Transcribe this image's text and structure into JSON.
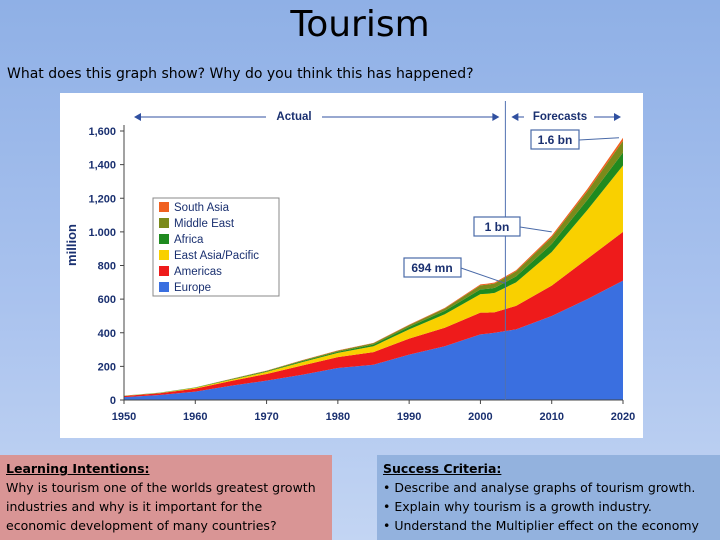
{
  "slide": {
    "title": "Tourism",
    "question": "What does this graph show? Why do you think this has happened?"
  },
  "learning_intentions": {
    "heading": "Learning Intentions:",
    "text": "Why is tourism one of the worlds greatest growth industries and why is it important for the economic development of many countries?"
  },
  "success_criteria": {
    "heading": "Success Criteria:",
    "items": [
      "• Describe and analyse graphs of tourism growth.",
      "• Explain why tourism is a growth industry.",
      "• Understand the Multiplier effect on the economy"
    ]
  },
  "chart_data": {
    "type": "area",
    "stacked": true,
    "ylabel": "million",
    "xlabel": "",
    "xlim": [
      1950,
      2020
    ],
    "ylim": [
      0,
      1600
    ],
    "xticks": [
      1950,
      1960,
      1970,
      1980,
      1990,
      2000,
      2010,
      2020
    ],
    "yticks": [
      0,
      200,
      400,
      600,
      800,
      "1.000",
      "1,200",
      "1,400",
      "1,600"
    ],
    "ytick_values": [
      0,
      200,
      400,
      600,
      800,
      1000,
      1200,
      1400,
      1600
    ],
    "x": [
      1950,
      1955,
      1960,
      1965,
      1970,
      1975,
      1980,
      1985,
      1990,
      1995,
      2000,
      2001,
      2002,
      2005,
      2010,
      2015,
      2020
    ],
    "series": [
      {
        "name": "Europe",
        "color": "#3a6fe0",
        "values": [
          17,
          30,
          50,
          85,
          115,
          150,
          190,
          210,
          270,
          320,
          390,
          395,
          400,
          420,
          500,
          600,
          710
        ]
      },
      {
        "name": "Americas",
        "color": "#ee1b1b",
        "values": [
          7,
          10,
          18,
          28,
          40,
          55,
          65,
          75,
          95,
          110,
          130,
          125,
          122,
          140,
          180,
          240,
          290
        ]
      },
      {
        "name": "East Asia/Pacific",
        "color": "#f9d000",
        "values": [
          1,
          2,
          4,
          7,
          12,
          20,
          25,
          35,
          55,
          80,
          110,
          112,
          115,
          140,
          200,
          290,
          395
        ]
      },
      {
        "name": "Africa",
        "color": "#1f8a1f",
        "values": [
          1,
          1,
          2,
          3,
          4,
          6,
          7,
          10,
          15,
          20,
          28,
          29,
          30,
          35,
          48,
          60,
          77
        ]
      },
      {
        "name": "Middle East",
        "color": "#7a8a1a",
        "values": [
          0,
          1,
          1,
          2,
          3,
          5,
          6,
          8,
          10,
          14,
          24,
          25,
          26,
          30,
          40,
          52,
          69
        ]
      },
      {
        "name": "South Asia",
        "color": "#f06020",
        "values": [
          0,
          0,
          0,
          1,
          1,
          1,
          2,
          2,
          3,
          4,
          6,
          6,
          6,
          7,
          10,
          13,
          19
        ]
      }
    ],
    "legend": {
      "position": "left",
      "order": [
        "South Asia",
        "Middle East",
        "Africa",
        "East Asia/Pacific",
        "Americas",
        "Europe"
      ]
    },
    "grid": false,
    "divider_year": 2003.5,
    "header_labels": {
      "actual": "Actual",
      "forecasts": "Forecasts"
    },
    "annotations": [
      {
        "text": "1.6 bn",
        "x": 2020,
        "y": 1560
      },
      {
        "text": "1 bn",
        "x": 2010,
        "y": 1000
      },
      {
        "text": "694 mn",
        "x": 2003.5,
        "y": 694
      }
    ]
  }
}
